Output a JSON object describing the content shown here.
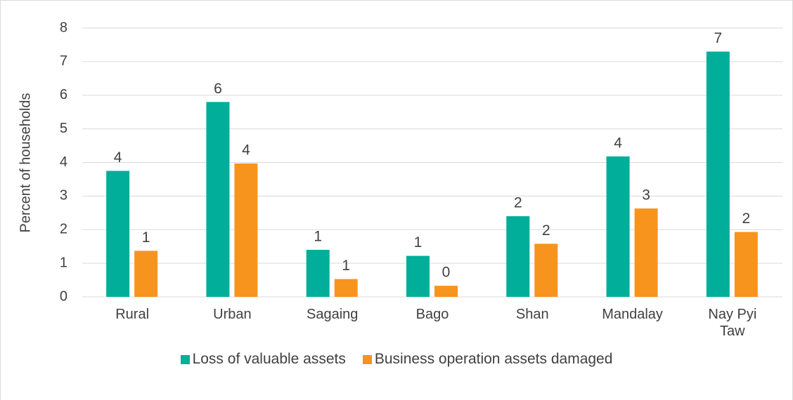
{
  "chart_data": {
    "type": "bar",
    "y_label": "Percent of households",
    "categories": [
      "Rural",
      "Urban",
      "Sagaing",
      "Bago",
      "Shan",
      "Mandalay",
      "Nay Pyi Taw"
    ],
    "series": [
      {
        "name": "Loss of valuable assets",
        "color": "#00ae9a",
        "values": [
          3.75,
          5.8,
          1.4,
          1.22,
          2.4,
          4.18,
          7.3
        ],
        "value_labels": [
          "4",
          "6",
          "1",
          "1",
          "2",
          "4",
          "7"
        ]
      },
      {
        "name": "Business operation assets damaged",
        "color": "#f7941d",
        "values": [
          1.37,
          3.97,
          0.53,
          0.33,
          1.58,
          2.63,
          1.93
        ],
        "value_labels": [
          "1",
          "4",
          "1",
          "0",
          "2",
          "3",
          "2"
        ]
      }
    ],
    "ylim": [
      0,
      8
    ],
    "yticks": [
      0,
      1,
      2,
      3,
      4,
      5,
      6,
      7,
      8
    ],
    "grid": true,
    "legend": "bottom"
  }
}
